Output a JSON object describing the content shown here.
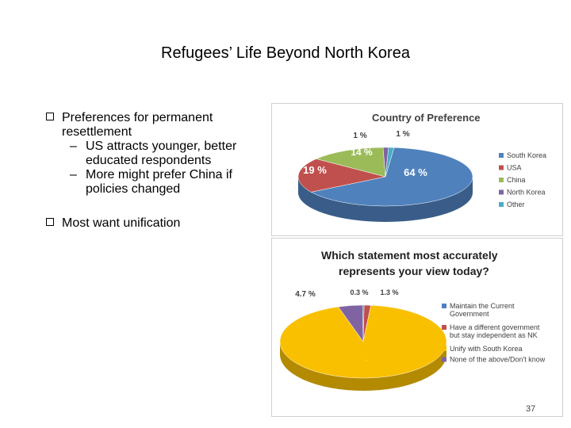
{
  "slide": {
    "title": "Refugees’ Life Beyond North Korea",
    "page_number": "37"
  },
  "bullets": {
    "b1_line1": "Preferences for permanent",
    "b1_line2": "resettlement",
    "s1_line1": "US attracts younger, better",
    "s1_line2": "educated respondents",
    "s2_line1": "More might prefer China if",
    "s2_line2": "policies changed",
    "b2": "Most want unification",
    "dash": "–"
  },
  "chart_data": [
    {
      "type": "pie",
      "title": "Country of Preference",
      "categories": [
        "South Korea",
        "USA",
        "China",
        "North Korea",
        "Other"
      ],
      "values": [
        64,
        19,
        14,
        1,
        1
      ],
      "labels": [
        "64 %",
        "19 %",
        "14 %",
        "1 %",
        "1 %"
      ],
      "colors": [
        "#4f81bd",
        "#c0504d",
        "#9bbb59",
        "#8064a2",
        "#4bacc6"
      ],
      "legend": "right"
    },
    {
      "type": "pie",
      "title": "Which statement most accurately represents your view today?",
      "title_lines": [
        "Which statement most accurately",
        "represents your view today?"
      ],
      "categories": [
        [
          "Maintain the Current",
          "Government"
        ],
        [
          "Have a different government",
          "but stay independent as NK"
        ],
        [
          "Unify with South Korea"
        ],
        [
          "None of the above/Don't know"
        ]
      ],
      "values": [
        0.3,
        1.3,
        93.7,
        4.7
      ],
      "labels": [
        "0.3 %",
        "1.3 %",
        "93.7 %",
        "4.7 %"
      ],
      "colors": [
        "#4f81bd",
        "#c0504d",
        "#f9c000",
        "#8064a2"
      ],
      "legend": "right"
    }
  ]
}
